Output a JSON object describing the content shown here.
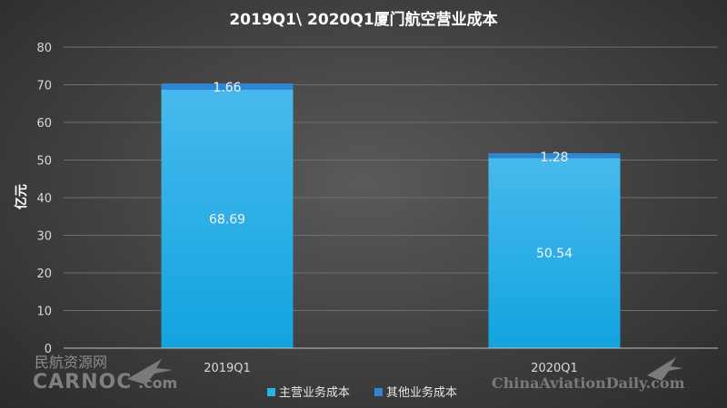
{
  "chart_data": {
    "type": "bar",
    "stacked": true,
    "title": "2019Q1\\ 2020Q1厦门航空营业成本",
    "ylabel": "亿元",
    "xlabel": "",
    "ylim": [
      0,
      80
    ],
    "yticks": [
      0,
      10,
      20,
      30,
      40,
      50,
      60,
      70,
      80
    ],
    "grid": true,
    "legend_position": "bottom",
    "categories": [
      "2019Q1",
      "2020Q1"
    ],
    "series": [
      {
        "name": "主营业务成本",
        "values": [
          68.69,
          50.54
        ],
        "color": "#27b3ea",
        "labels": [
          "68.69",
          "50.54"
        ]
      },
      {
        "name": "其他业务成本",
        "values": [
          1.66,
          1.28
        ],
        "color": "#2f86d3",
        "labels": [
          "1.66",
          "1.28"
        ]
      }
    ]
  },
  "watermarks": {
    "left_cn": "民航资源网",
    "left_brand": "CARNOC",
    "left_suffix": ".com",
    "right": "ChinaAviationDaily.com"
  }
}
